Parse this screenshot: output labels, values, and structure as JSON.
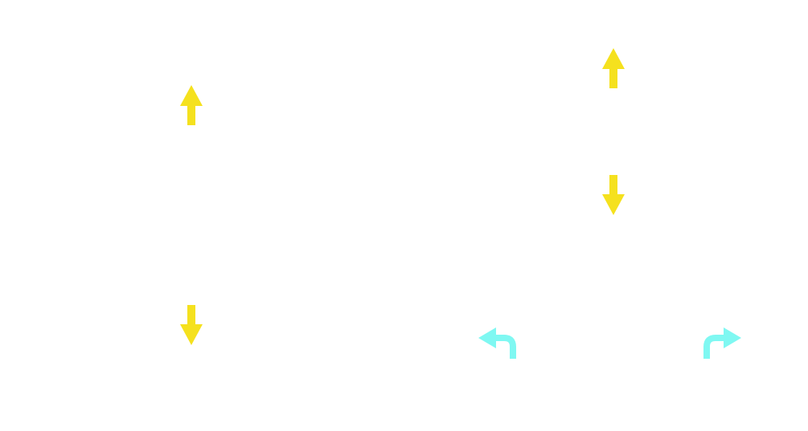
{
  "controls": {
    "left_stick": {
      "up": {
        "icon": "arrow-up-icon",
        "color": "#f5e11e"
      },
      "down": {
        "icon": "arrow-down-icon",
        "color": "#f5e11e"
      }
    },
    "right_stick": {
      "up": {
        "icon": "arrow-up-icon",
        "color": "#f5e11e"
      },
      "value_label": "",
      "down": {
        "icon": "arrow-down-icon",
        "color": "#f5e11e"
      }
    },
    "rotate_left": {
      "icon": "turn-left-arrow-icon",
      "color": "#7ff8f2"
    },
    "rotate_right": {
      "icon": "turn-right-arrow-icon",
      "color": "#7ff8f2"
    }
  }
}
